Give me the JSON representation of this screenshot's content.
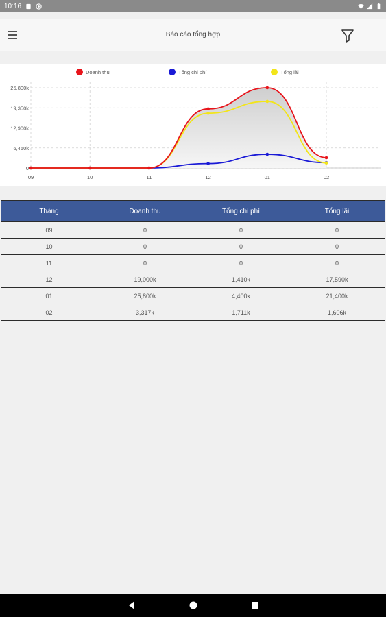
{
  "status_bar": {
    "time": "10:16"
  },
  "app_bar": {
    "title": "Báo cáo tổng hợp"
  },
  "chart_data": {
    "type": "line",
    "categories": [
      "09",
      "10",
      "11",
      "12",
      "01",
      "02"
    ],
    "series": [
      {
        "name": "Doanh thu",
        "color": "#e8141b",
        "values": [
          0,
          0,
          0,
          19000,
          25800,
          3317
        ]
      },
      {
        "name": "Tổng chi phí",
        "color": "#1a1ad6",
        "values": [
          0,
          0,
          0,
          1410,
          4400,
          1711
        ]
      },
      {
        "name": "Tổng lãi",
        "color": "#f2e51a",
        "values": [
          0,
          0,
          0,
          17590,
          21400,
          1606
        ]
      }
    ],
    "yticks": [
      "0",
      "6,450k",
      "12,900k",
      "19,350k",
      "25,800k"
    ],
    "ylim": [
      0,
      25800
    ],
    "grid": true,
    "legend": "top"
  },
  "table": {
    "headers": [
      "Tháng",
      "Doanh thu",
      "Tổng chi phí",
      "Tổng lãi"
    ],
    "rows": [
      [
        "09",
        "0",
        "0",
        "0"
      ],
      [
        "10",
        "0",
        "0",
        "0"
      ],
      [
        "11",
        "0",
        "0",
        "0"
      ],
      [
        "12",
        "19,000k",
        "1,410k",
        "17,590k"
      ],
      [
        "01",
        "25,800k",
        "4,400k",
        "21,400k"
      ],
      [
        "02",
        "3,317k",
        "1,711k",
        "1,606k"
      ]
    ]
  }
}
